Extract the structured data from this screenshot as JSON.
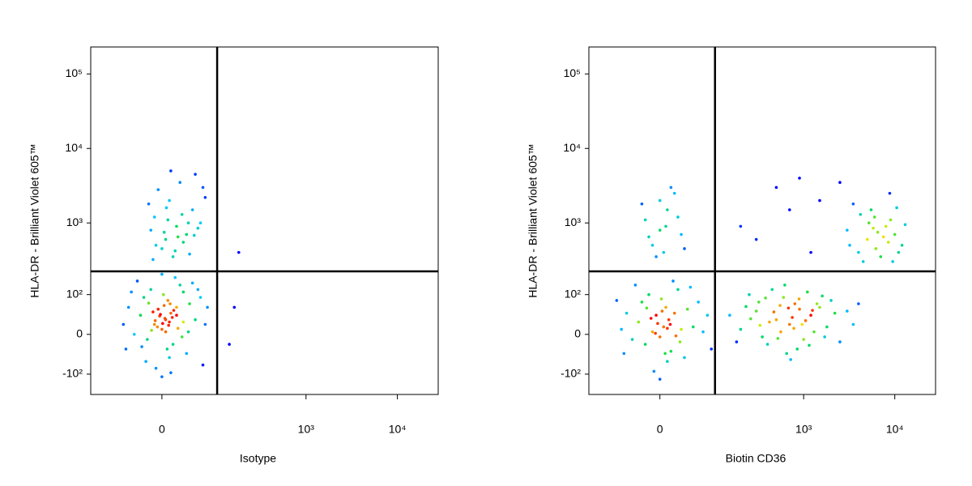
{
  "chart_data": [
    {
      "type": "scatter",
      "xlabel": "Isotype",
      "ylabel": "HLA-DR - Brilliant Violet 605™",
      "xscale": "biexponential",
      "yscale": "biexponential",
      "xlim": [
        -155,
        28000
      ],
      "ylim": [
        -200,
        230000
      ],
      "xticks": [
        0,
        {
          "value": 1000,
          "label": "10³"
        },
        {
          "value": 10000,
          "label": "10⁴"
        }
      ],
      "yticks": [
        {
          "value": -100,
          "label": "-10²"
        },
        0,
        {
          "value": 100,
          "label": "10²"
        },
        {
          "value": 1000,
          "label": "10³"
        },
        {
          "value": 10000,
          "label": "10⁴"
        },
        {
          "value": 100000,
          "label": "10⁵"
        }
      ],
      "gates": {
        "x": 100,
        "y": 220
      },
      "x": [
        5,
        -10,
        12,
        0,
        20,
        -20,
        8,
        -5,
        30,
        -30,
        15,
        2,
        -15,
        25,
        40,
        -40,
        10,
        -8,
        50,
        -50,
        35,
        -25,
        18,
        0,
        60,
        -55,
        45,
        -35,
        70,
        5,
        -3,
        10,
        -12,
        22,
        3,
        -18,
        28,
        7,
        -6,
        14,
        65,
        -45,
        0,
        30,
        -22,
        55,
        12,
        -60,
        75,
        -2,
        9,
        16,
        -9,
        4,
        20,
        -14,
        1,
        11,
        -28,
        38,
        5,
        20,
        -10,
        35,
        10,
        0,
        45,
        -15,
        25,
        60,
        15,
        -5,
        30,
        50,
        8,
        40,
        -18,
        22,
        70,
        12,
        3,
        28,
        -8,
        55,
        18,
        65,
        -12,
        38,
        6,
        48,
        180,
        160,
        140
      ],
      "y": [
        30,
        20,
        45,
        10,
        60,
        -10,
        80,
        55,
        25,
        40,
        -20,
        100,
        120,
        140,
        70,
        0,
        -50,
        -80,
        30,
        60,
        -40,
        90,
        180,
        -110,
        90,
        -30,
        150,
        160,
        20,
        5,
        38,
        25,
        48,
        12,
        65,
        72,
        -5,
        -30,
        15,
        35,
        -70,
        110,
        200,
        110,
        -60,
        120,
        -95,
        20,
        60,
        42,
        18,
        52,
        28,
        33,
        40,
        8,
        22,
        70,
        -25,
        5,
        600,
        900,
        1200,
        700,
        2000,
        450,
        1500,
        800,
        3500,
        1000,
        350,
        2800,
        550,
        4500,
        1100,
        380,
        1800,
        650,
        2200,
        5000,
        750,
        1300,
        500,
        850,
        420,
        3000,
        320,
        1000,
        1600,
        680,
        400,
        60,
        -20
      ]
    },
    {
      "type": "scatter",
      "xlabel": "Biotin CD36",
      "ylabel": "HLA-DR - Brilliant Violet 605™",
      "xscale": "biexponential",
      "yscale": "biexponential",
      "xlim": [
        -155,
        28000
      ],
      "ylim": [
        -200,
        230000
      ],
      "xticks": [
        0,
        {
          "value": 1000,
          "label": "10³"
        },
        {
          "value": 10000,
          "label": "10⁴"
        }
      ],
      "yticks": [
        {
          "value": -100,
          "label": "-10²"
        },
        0,
        {
          "value": 100,
          "label": "10²"
        },
        {
          "value": 1000,
          "label": "10³"
        },
        {
          "value": 10000,
          "label": "10⁴"
        },
        {
          "value": 100000,
          "label": "10⁵"
        }
      ],
      "gates": {
        "x": 100,
        "y": 220
      },
      "x": [
        5,
        -10,
        12,
        0,
        20,
        -20,
        8,
        -5,
        30,
        -30,
        15,
        2,
        -15,
        25,
        40,
        -40,
        10,
        -8,
        50,
        -50,
        35,
        -25,
        18,
        0,
        60,
        -55,
        45,
        -35,
        70,
        -3,
        10,
        -12,
        22,
        3,
        -18,
        28,
        7,
        -6,
        14,
        -60,
        80,
        -70,
        90,
        0,
        10,
        -10,
        20,
        5,
        -20,
        30,
        15,
        -5,
        25,
        0,
        -15,
        8,
        35,
        -25,
        300,
        500,
        800,
        1200,
        200,
        600,
        1000,
        1500,
        400,
        700,
        2000,
        250,
        900,
        350,
        1800,
        450,
        3000,
        150,
        650,
        1100,
        550,
        2500,
        750,
        320,
        1300,
        850,
        420,
        1600,
        180,
        2200,
        960,
        520,
        680,
        1400,
        380,
        780,
        260,
        1150,
        620,
        3500,
        470,
        1700,
        890,
        230,
        1050,
        560,
        4000,
        720,
        330,
        1250,
        5000,
        8000,
        4000,
        10000,
        6000,
        3000,
        12000,
        7000,
        5500,
        9000,
        4500,
        11000,
        6500,
        3500,
        8500,
        13000,
        5200,
        7500,
        9500,
        4200,
        6200,
        10500,
        3200,
        8800,
        5800,
        200,
        500,
        1500,
        900,
        300,
        2500,
        1200,
        700
      ],
      "y": [
        15,
        5,
        30,
        -5,
        45,
        -20,
        60,
        40,
        10,
        25,
        -35,
        85,
        100,
        120,
        55,
        -10,
        -60,
        -90,
        15,
        45,
        -50,
        75,
        160,
        -120,
        75,
        -40,
        130,
        140,
        5,
        22,
        12,
        33,
        -3,
        50,
        58,
        -15,
        -40,
        2,
        20,
        10,
        40,
        80,
        -30,
        800,
        1500,
        500,
        2500,
        400,
        1100,
        700,
        3000,
        350,
        1200,
        2000,
        650,
        900,
        450,
        1800,
        50,
        30,
        70,
        40,
        10,
        90,
        -10,
        60,
        -20,
        20,
        80,
        100,
        55,
        -5,
        15,
        120,
        50,
        40,
        -40,
        110,
        65,
        -15,
        35,
        75,
        5,
        -30,
        25,
        95,
        -15,
        45,
        20,
        -8,
        58,
        70,
        88,
        12,
        32,
        -22,
        140,
        20,
        48,
        -5,
        85,
        62,
        28,
        5,
        70,
        -55,
        18,
        52,
        600,
        900,
        400,
        700,
        1200,
        800,
        500,
        350,
        1500,
        1100,
        300,
        400,
        750,
        1800,
        550,
        950,
        1000,
        650,
        300,
        1300,
        450,
        1600,
        500,
        2500,
        850,
        900,
        3000,
        2000,
        4000,
        600,
        3500,
        400,
        1500
      ]
    }
  ]
}
